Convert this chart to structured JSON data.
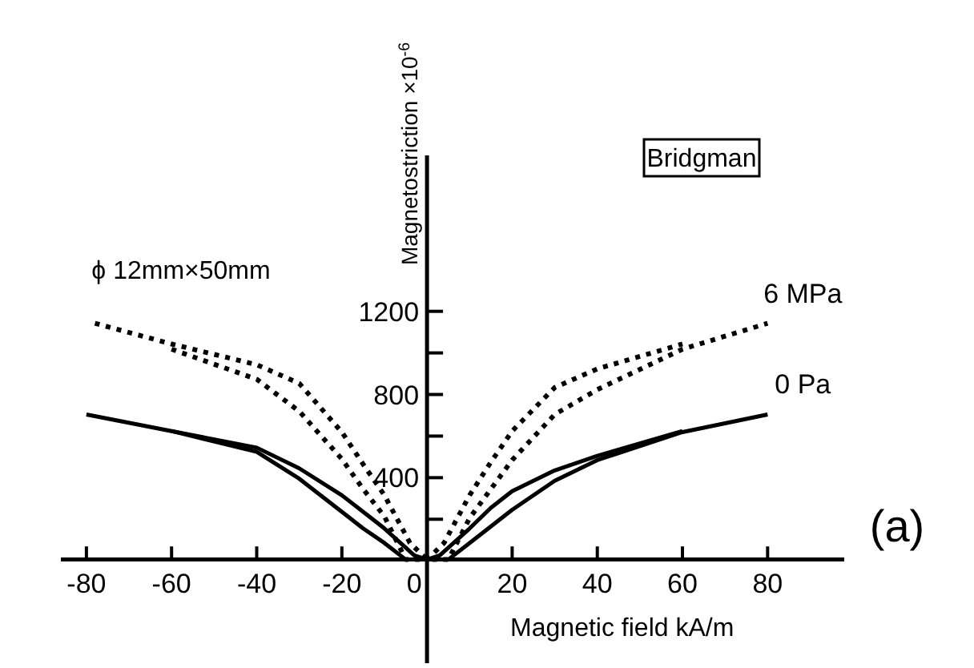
{
  "chart_data": {
    "type": "line",
    "ylabel": "Magnetostriction  ×10$^{-6}$",
    "xlabel": "Magnetic field  kA/m",
    "annotations": [
      "Bridgman",
      "ϕ 12mm×50mm",
      "(a)"
    ],
    "xlim": [
      -86,
      98
    ],
    "ylim": [
      -500,
      1950
    ],
    "xticks": [
      -80,
      -60,
      -40,
      -20,
      0,
      20,
      40,
      60,
      80
    ],
    "yticks": [
      {
        "value": 200,
        "label": null
      },
      400,
      {
        "value": 600,
        "label": null
      },
      800,
      {
        "value": 1000,
        "label": null
      },
      1200
    ],
    "grid": false,
    "marker": "none",
    "series": [
      {
        "name": "6 MPa",
        "color": "#000000",
        "line_style": "dotted",
        "x": [
          -78,
          -60,
          -40,
          -30,
          -20,
          -15,
          -10,
          -4,
          0,
          5,
          10,
          15,
          20,
          30,
          40,
          60,
          80
        ],
        "values": [
          1140,
          1040,
          940,
          850,
          615,
          460,
          310,
          80,
          0,
          0,
          200,
          340,
          480,
          700,
          820,
          1015,
          1140
        ]
      },
      {
        "color": "#000000",
        "line_style": "dotted",
        "x": [
          -60,
          -40,
          -30,
          -20,
          -15,
          -10,
          -5,
          0,
          4,
          10,
          15,
          20,
          30,
          40,
          60
        ],
        "values": [
          1015,
          870,
          715,
          485,
          340,
          208,
          0,
          0,
          80,
          310,
          470,
          620,
          830,
          920,
          1040
        ]
      },
      {
        "name": "0 Pa",
        "color": "#000000",
        "line_style": "solid",
        "x": [
          -80,
          -60,
          -40,
          -30,
          -20,
          -15,
          -10,
          -3,
          0,
          5,
          10,
          15,
          20,
          30,
          40,
          60,
          80
        ],
        "values": [
          700,
          620,
          540,
          440,
          310,
          230,
          150,
          20,
          0,
          0,
          80,
          160,
          240,
          380,
          480,
          615,
          700
        ]
      },
      {
        "color": "#000000",
        "line_style": "solid",
        "x": [
          -60,
          -40,
          -30,
          -20,
          -15,
          -10,
          -5,
          0,
          3,
          10,
          15,
          20,
          30,
          40,
          60
        ],
        "values": [
          620,
          520,
          390,
          230,
          150,
          80,
          0,
          0,
          20,
          150,
          250,
          330,
          430,
          500,
          620
        ]
      }
    ]
  }
}
